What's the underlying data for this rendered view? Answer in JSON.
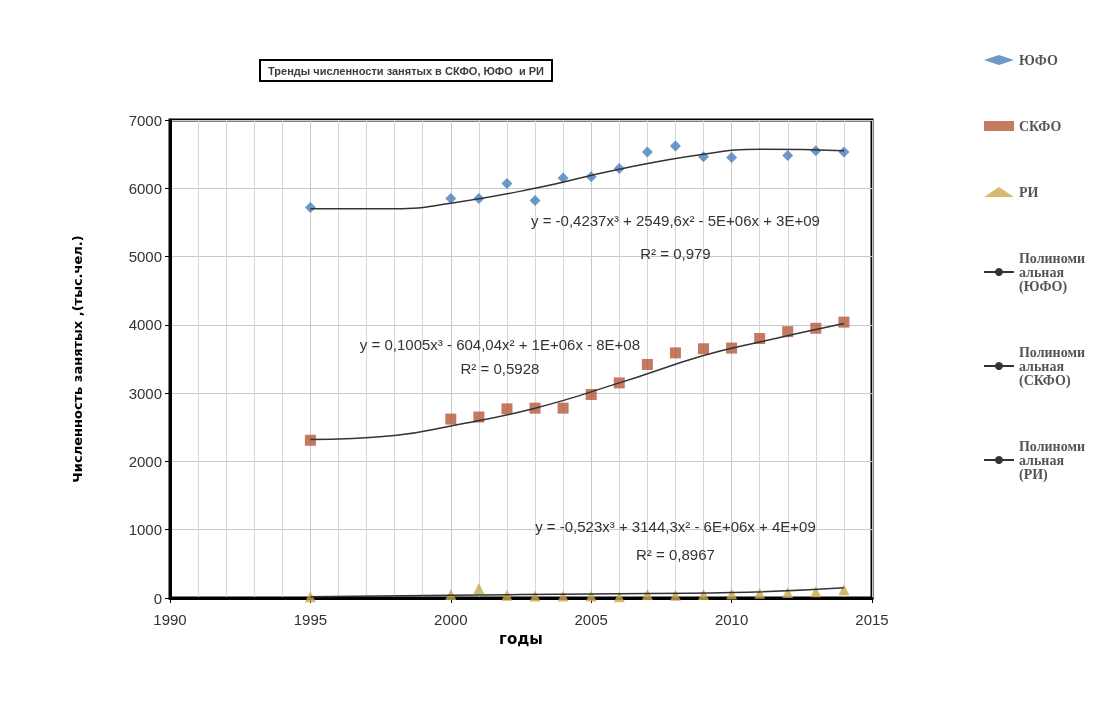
{
  "chart_data": {
    "type": "scatter",
    "title": "Тренды численности занятых в СКФО, ЮФО  и РИ",
    "xlabel": "годы",
    "ylabel": "Численность занятых ,(тыс.чел.)",
    "xlim": [
      1990,
      2015
    ],
    "xticks": [
      1990,
      1995,
      2000,
      2005,
      2010,
      2015
    ],
    "ylim": [
      0,
      7000
    ],
    "yticks": [
      0,
      1000,
      2000,
      3000,
      4000,
      5000,
      6000,
      7000
    ],
    "grid": true,
    "legend": "right",
    "series": [
      {
        "name": "ЮФО",
        "color": "#4a7ebb",
        "marker": "diamond",
        "x": [
          1995,
          2000,
          2001,
          2002,
          2003,
          2004,
          2005,
          2006,
          2007,
          2008,
          2009,
          2010,
          2012,
          2013,
          2014
        ],
        "values": [
          5720,
          5850,
          5850,
          6070,
          5820,
          6150,
          6170,
          6290,
          6530,
          6620,
          6460,
          6450,
          6480,
          6550,
          6530
        ]
      },
      {
        "name": "СКФО",
        "color": "#b5583a",
        "marker": "square",
        "x": [
          1995,
          2000,
          2001,
          2002,
          2003,
          2004,
          2005,
          2006,
          2007,
          2008,
          2009,
          2010,
          2011,
          2012,
          2013,
          2014
        ],
        "values": [
          2310,
          2620,
          2650,
          2770,
          2780,
          2780,
          2980,
          3150,
          3420,
          3590,
          3650,
          3660,
          3800,
          3900,
          3950,
          4040
        ]
      },
      {
        "name": "РИ",
        "color": "#c9a84c",
        "marker": "triangle",
        "x": [
          1995,
          2000,
          2001,
          2002,
          2003,
          2004,
          2005,
          2006,
          2007,
          2008,
          2009,
          2010,
          2011,
          2012,
          2013,
          2014
        ],
        "values": [
          20,
          50,
          140,
          40,
          30,
          30,
          30,
          20,
          50,
          40,
          50,
          60,
          70,
          80,
          90,
          120
        ]
      },
      {
        "name": "Полиномиальная (ЮФО)",
        "type": "line",
        "color": "#333333",
        "marker": "none",
        "x": [
          1995,
          1998,
          2000,
          2003,
          2006,
          2009,
          2011,
          2014
        ],
        "values": [
          5700,
          5700,
          5780,
          6000,
          6280,
          6500,
          6570,
          6550
        ]
      },
      {
        "name": "Полиномиальная (СКФО)",
        "type": "line",
        "color": "#333333",
        "marker": "none",
        "x": [
          1995,
          1998,
          2000,
          2003,
          2006,
          2009,
          2011,
          2014
        ],
        "values": [
          2320,
          2380,
          2520,
          2780,
          3150,
          3550,
          3750,
          4020
        ]
      },
      {
        "name": "Полиномиальная (РИ)",
        "type": "line",
        "color": "#333333",
        "marker": "none",
        "x": [
          1995,
          2000,
          2005,
          2010,
          2014
        ],
        "values": [
          20,
          40,
          60,
          80,
          150
        ]
      }
    ],
    "annotations": [
      "y = -0,4237x³ + 2549,6x² - 5E+06x + 3E+09",
      "R² = 0,979",
      "y = 0,1005x³ - 604,04x² + 1E+06x - 8E+08",
      "R² = 0,5928",
      "y = -0,523x³ + 3144,3x² - 6E+06x + 4E+09",
      "R² = 0,8967"
    ]
  }
}
